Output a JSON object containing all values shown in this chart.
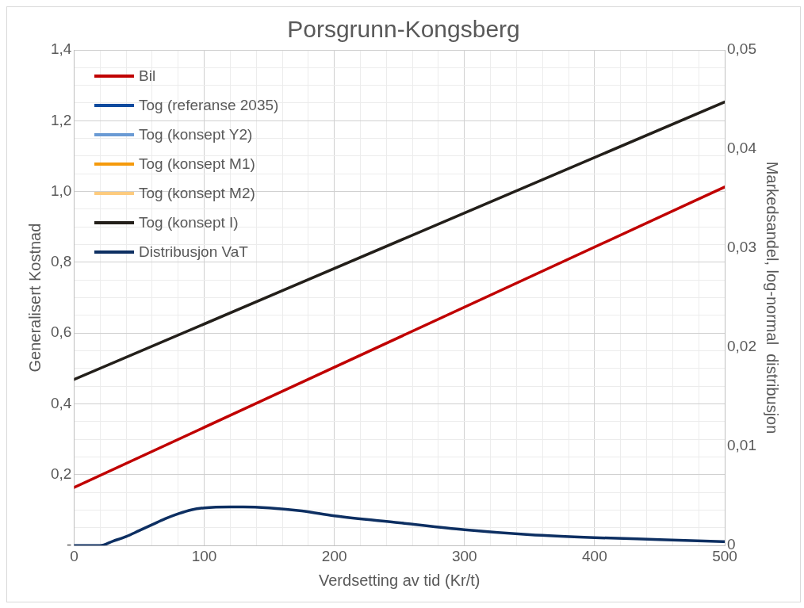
{
  "chart_data": {
    "type": "line",
    "title": "Porsgrunn-Kongsberg",
    "xlabel": "Verdsetting av tid (Kr/t)",
    "ylabel": "Generalisert Kostnad",
    "y2label": "Markedsandel, log-normal  distribusjon",
    "xlim": [
      0,
      500
    ],
    "ylim": [
      0,
      1.4
    ],
    "y2lim": [
      0,
      0.05
    ],
    "xticks": [
      0,
      {
        "value": 20,
        "label": null
      },
      {
        "value": 40,
        "label": null
      },
      {
        "value": 60,
        "label": null
      },
      {
        "value": 80,
        "label": null
      },
      100,
      {
        "value": 120,
        "label": null
      },
      {
        "value": 140,
        "label": null
      },
      {
        "value": 160,
        "label": null
      },
      {
        "value": 180,
        "label": null
      },
      200,
      {
        "value": 220,
        "label": null
      },
      {
        "value": 240,
        "label": null
      },
      {
        "value": 260,
        "label": null
      },
      {
        "value": 280,
        "label": null
      },
      300,
      {
        "value": 320,
        "label": null
      },
      {
        "value": 340,
        "label": null
      },
      {
        "value": 360,
        "label": null
      },
      {
        "value": 380,
        "label": null
      },
      400,
      {
        "value": 420,
        "label": null
      },
      {
        "value": 440,
        "label": null
      },
      {
        "value": 460,
        "label": null
      },
      {
        "value": 480,
        "label": null
      },
      500
    ],
    "yticks": [
      {
        "value": 0,
        "label": "-"
      },
      {
        "value": 0.05,
        "label": null
      },
      {
        "value": 0.1,
        "label": null
      },
      {
        "value": 0.15,
        "label": null
      },
      {
        "value": 0.2,
        "label": "0,2"
      },
      {
        "value": 0.25,
        "label": null
      },
      {
        "value": 0.3,
        "label": null
      },
      {
        "value": 0.35,
        "label": null
      },
      {
        "value": 0.4,
        "label": "0,4"
      },
      {
        "value": 0.45,
        "label": null
      },
      {
        "value": 0.5,
        "label": null
      },
      {
        "value": 0.55,
        "label": null
      },
      {
        "value": 0.6,
        "label": "0,6"
      },
      {
        "value": 0.65,
        "label": null
      },
      {
        "value": 0.7,
        "label": null
      },
      {
        "value": 0.75,
        "label": null
      },
      {
        "value": 0.8,
        "label": "0,8"
      },
      {
        "value": 0.85,
        "label": null
      },
      {
        "value": 0.9,
        "label": null
      },
      {
        "value": 0.95,
        "label": null
      },
      {
        "value": 1.0,
        "label": "1,0"
      },
      {
        "value": 1.05,
        "label": null
      },
      {
        "value": 1.1,
        "label": null
      },
      {
        "value": 1.15,
        "label": null
      },
      {
        "value": 1.2,
        "label": "1,2"
      },
      {
        "value": 1.25,
        "label": null
      },
      {
        "value": 1.3,
        "label": null
      },
      {
        "value": 1.35,
        "label": null
      },
      {
        "value": 1.4,
        "label": "1,4"
      }
    ],
    "y2ticks": [
      0,
      {
        "value": 0.01,
        "label": "0,01"
      },
      {
        "value": 0.02,
        "label": "0,02"
      },
      {
        "value": 0.03,
        "label": "0,03"
      },
      {
        "value": 0.04,
        "label": "0,04"
      },
      {
        "value": 0.05,
        "label": "0,05"
      }
    ],
    "grid": true,
    "legend": "top left",
    "marker": "none",
    "line_style": "solid",
    "series": [
      {
        "name": "Bil",
        "color": "#c00000",
        "x": [
          0,
          500
        ],
        "values": [
          0.164,
          1.013
        ]
      },
      {
        "name": "Tog (referanse 2035)",
        "color": "#0e4a9e"
      },
      {
        "name": "Tog (konsept Y2)",
        "color": "#6a9ad4"
      },
      {
        "name": "Tog (konsept M1)",
        "color": "#f59a0c"
      },
      {
        "name": "Tog (konsept M2)",
        "color": "#fdcb7e"
      },
      {
        "name": "Tog (konsept I)",
        "color": "#231f1a",
        "x": [
          0,
          500
        ],
        "values": [
          0.469,
          1.253
        ]
      },
      {
        "name": "Distribusjon VaT",
        "color": "#0d2f62",
        "axis": "y2",
        "x": [
          0,
          20,
          30,
          40,
          50,
          60,
          70,
          80,
          90,
          100,
          120,
          130,
          150,
          175,
          200,
          250,
          300,
          350,
          400,
          450,
          500
        ],
        "values": [
          0,
          0,
          0.00045,
          0.0009,
          0.0015,
          0.0021,
          0.0027,
          0.0032,
          0.0036,
          0.0038,
          0.0039,
          0.0039,
          0.0038,
          0.0035,
          0.003,
          0.0023,
          0.0016,
          0.0011,
          0.0008,
          0.0006,
          0.0004
        ]
      }
    ]
  }
}
